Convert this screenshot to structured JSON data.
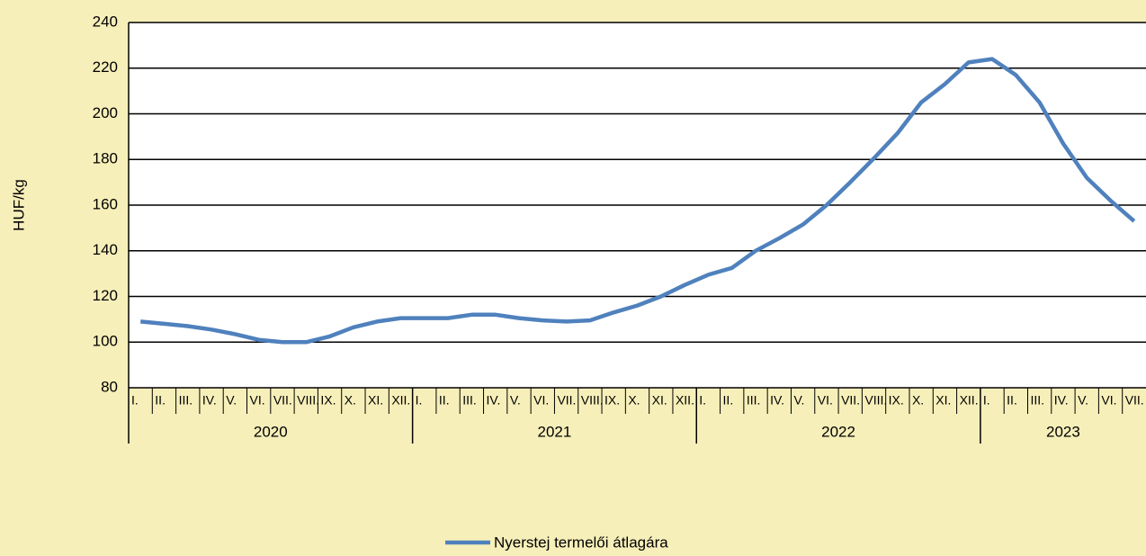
{
  "chart_data": {
    "type": "line",
    "y_label": "HUF/kg",
    "category_groups": [
      {
        "name": "2020",
        "categories": [
          "I.",
          "II.",
          "III.",
          "IV.",
          "V.",
          "VI.",
          "VII.",
          "VIII.",
          "IX.",
          "X.",
          "XI.",
          "XII."
        ]
      },
      {
        "name": "2021",
        "categories": [
          "I.",
          "II.",
          "III.",
          "IV.",
          "V.",
          "VI.",
          "VII.",
          "VIII.",
          "IX.",
          "X.",
          "XI.",
          "XII."
        ]
      },
      {
        "name": "2022",
        "categories": [
          "I.",
          "II.",
          "III.",
          "IV.",
          "V.",
          "VI.",
          "VII.",
          "VIII.",
          "IX.",
          "X.",
          "XI.",
          "XII."
        ]
      },
      {
        "name": "2023",
        "categories": [
          "I.",
          "II.",
          "III.",
          "IV.",
          "V.",
          "VI.",
          "VII."
        ]
      }
    ],
    "series": [
      {
        "name": "Nyerstej termelői átlagára",
        "color": "#4f81bd",
        "values": [
          109,
          108,
          107,
          105.5,
          103.5,
          101,
          100,
          100,
          102.5,
          106.5,
          109,
          110.5,
          110.5,
          110.5,
          112,
          112,
          110.5,
          109.5,
          109,
          109.5,
          113,
          116,
          120,
          125,
          129.5,
          132.5,
          140,
          145.5,
          151.5,
          160,
          170,
          180.5,
          191.5,
          205,
          213,
          222.5,
          224,
          217,
          205,
          187,
          172,
          162,
          153
        ]
      }
    ],
    "ylim": [
      80,
      240
    ],
    "yticks": [
      80,
      100,
      120,
      140,
      160,
      180,
      200,
      220,
      240
    ],
    "grid": true,
    "legend": "bottom"
  }
}
